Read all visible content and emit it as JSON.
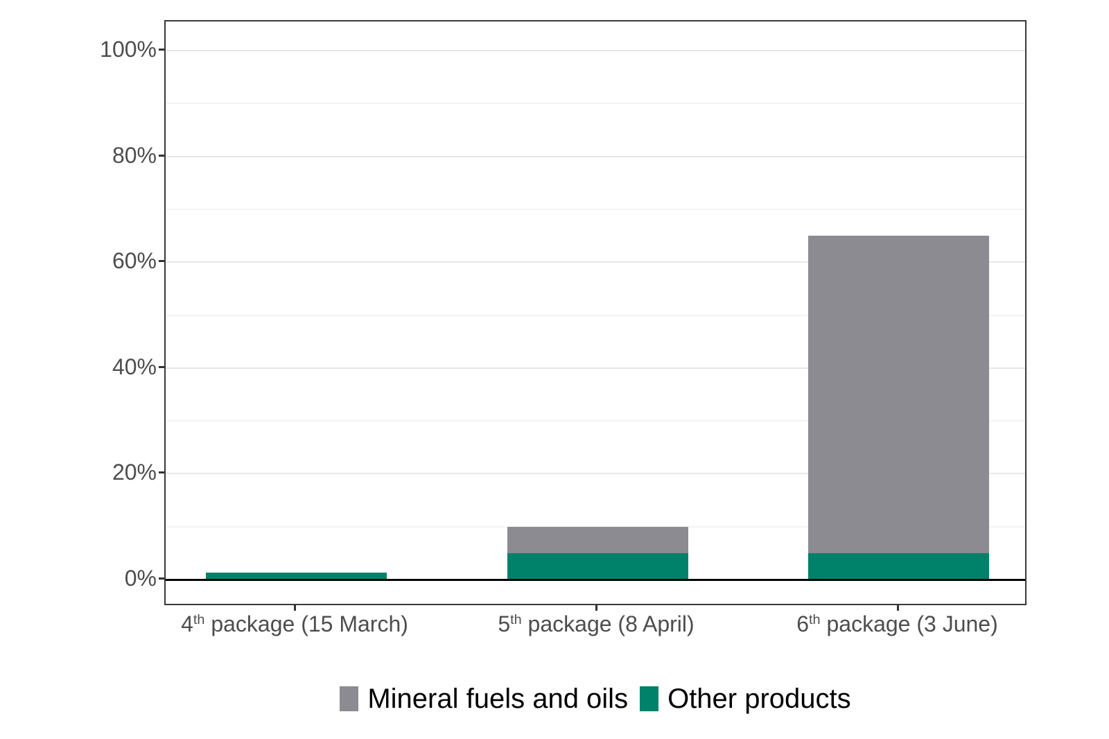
{
  "chart_data": {
    "type": "bar",
    "stacked": true,
    "title": "",
    "categories": [
      {
        "ordinal": "4",
        "ordinal_suffix": "th",
        "rest": " package (15 March)",
        "label": "4th package (15 March)"
      },
      {
        "ordinal": "5",
        "ordinal_suffix": "th",
        "rest": " package (8 April)",
        "label": "5th package (8 April)"
      },
      {
        "ordinal": "6",
        "ordinal_suffix": "th",
        "rest": " package (3 June)",
        "label": "6th package (3 June)"
      }
    ],
    "series": [
      {
        "name": "Mineral fuels and oils",
        "color": "#8B8B91",
        "values": [
          0,
          5,
          60
        ]
      },
      {
        "name": "Other products",
        "color": "#008169",
        "values": [
          1.3,
          5,
          5
        ]
      }
    ],
    "stack_order_bottom_to_top": [
      1,
      0
    ],
    "totals": [
      1.3,
      10,
      65
    ],
    "y_axis": {
      "tick_values": [
        0,
        20,
        40,
        60,
        80,
        100
      ],
      "minor_tick_values": [
        10,
        30,
        50,
        70,
        90
      ],
      "tick_suffix": "%",
      "ylim": [
        0,
        105
      ]
    },
    "x_axis": {
      "tick_labels": [
        "4th package (15 March)",
        "5th package (8 April)",
        "6th package (3 June)"
      ]
    },
    "legend": {
      "position": "bottom",
      "entries": [
        {
          "label": "Mineral fuels and oils",
          "color": "#8B8B91"
        },
        {
          "label": "Other products",
          "color": "#008169"
        }
      ]
    },
    "grid": "horizontal major and minor lines",
    "colors": {
      "axis_text": "#4d4d4d",
      "legend_text": "#000000",
      "panel_border": "#383838",
      "gridline_major": "#e7e7e7",
      "gridline_minor": "#f3f3f3",
      "zero_line": "#000000",
      "background": "#ffffff"
    }
  }
}
